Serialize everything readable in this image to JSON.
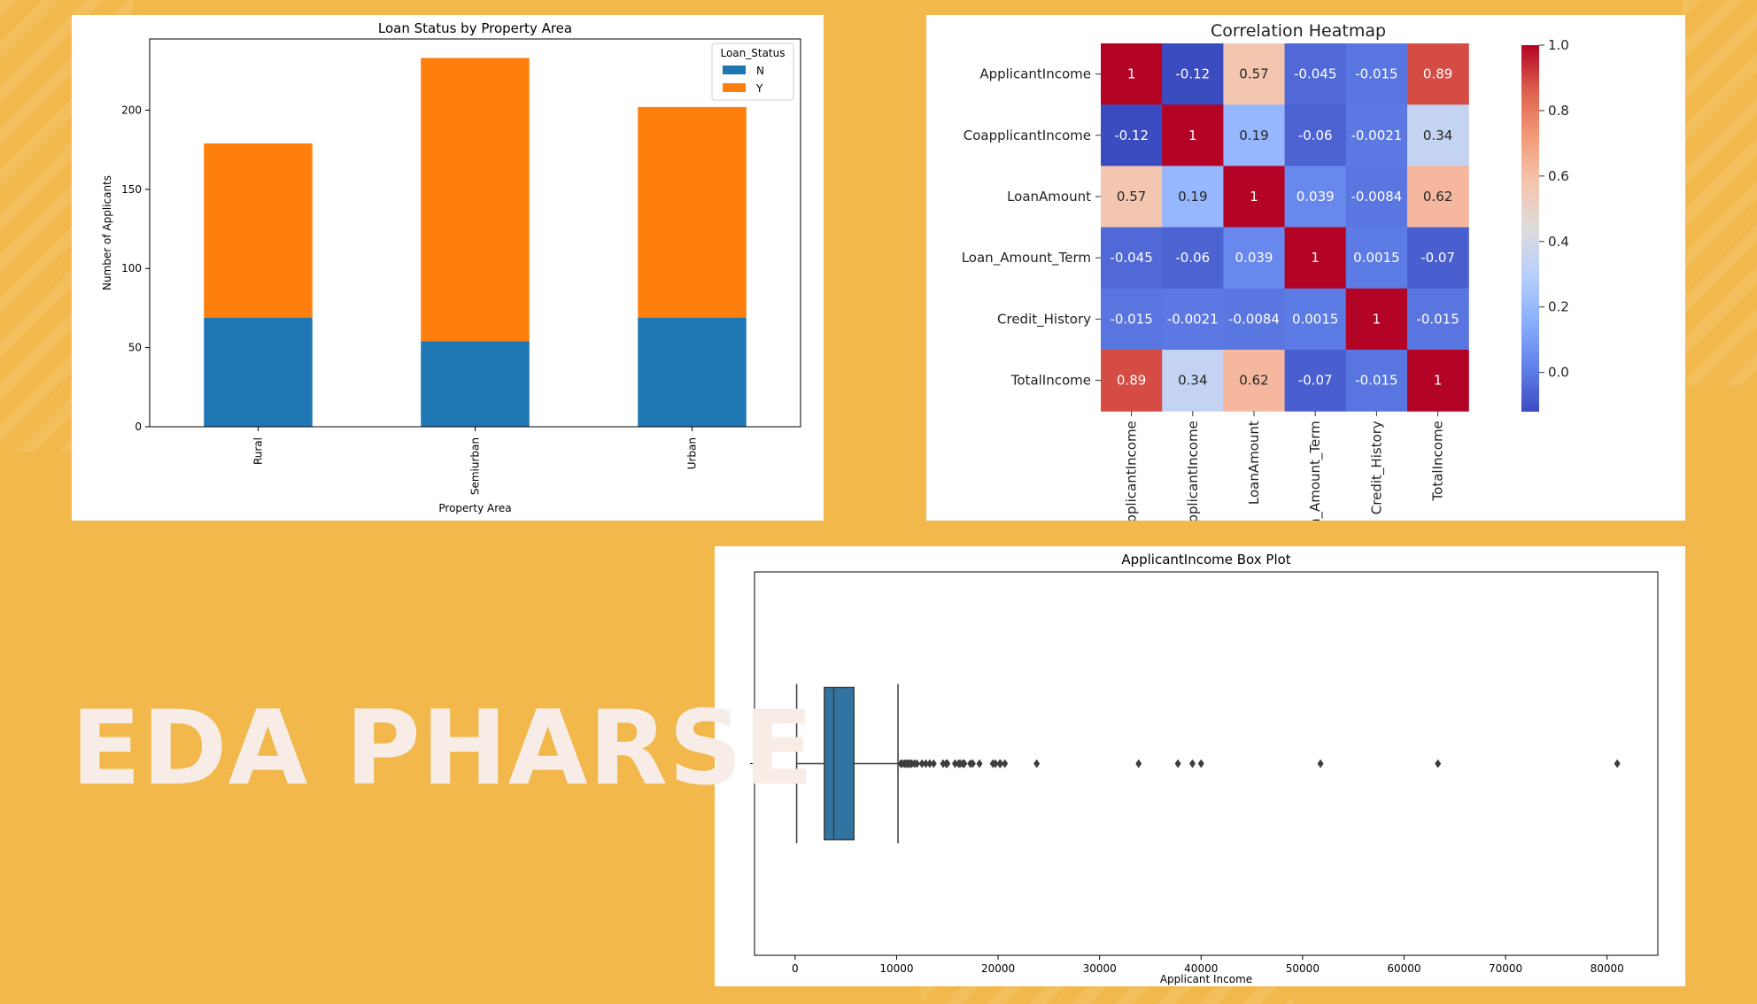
{
  "slide": {
    "headline": "EDA PHARSE",
    "colors": {
      "background": "#F2B84B",
      "headline": "#F7ECE6"
    }
  },
  "chart_data": [
    {
      "type": "bar",
      "stacked": true,
      "title": "Loan Status by Property Area",
      "xlabel": "Property Area",
      "ylabel": "Number of Applicants",
      "categories": [
        "Rural",
        "Semiurban",
        "Urban"
      ],
      "series": [
        {
          "name": "N",
          "values": [
            69,
            54,
            69
          ],
          "color": "#1F77B4"
        },
        {
          "name": "Y",
          "values": [
            110,
            179,
            133
          ],
          "color": "#FF7F0E"
        }
      ],
      "ylim": [
        0,
        245
      ],
      "yticks": [
        0,
        50,
        100,
        150,
        200
      ],
      "legend": {
        "title": "Loan_Status",
        "placement": "top-right"
      },
      "grid": false
    },
    {
      "type": "heatmap",
      "title": "Correlation Heatmap",
      "labels": [
        "ApplicantIncome",
        "CoapplicantIncome",
        "LoanAmount",
        "Loan_Amount_Term",
        "Credit_History",
        "TotalIncome"
      ],
      "xtick_labels": [
        "ApplicantIncome",
        "CoapplicantIncome",
        "LoanAmount",
        "Loan_Amount_Term",
        "Credit_History",
        "TotalIncome"
      ],
      "values": [
        [
          1,
          -0.12,
          0.57,
          -0.045,
          -0.015,
          0.89
        ],
        [
          -0.12,
          1,
          0.19,
          -0.06,
          -0.0021,
          0.34
        ],
        [
          0.57,
          0.19,
          1,
          0.039,
          -0.0084,
          0.62
        ],
        [
          -0.045,
          -0.06,
          0.039,
          1,
          0.0015,
          -0.07
        ],
        [
          -0.015,
          -0.0021,
          -0.0084,
          0.0015,
          1,
          -0.015
        ],
        [
          0.89,
          0.34,
          0.62,
          -0.07,
          -0.015,
          1
        ]
      ],
      "cell_labels": [
        [
          "1",
          "-0.12",
          "0.57",
          "-0.045",
          "-0.015",
          "0.89"
        ],
        [
          "-0.12",
          "1",
          "0.19",
          "-0.06",
          "-0.0021",
          "0.34"
        ],
        [
          "0.57",
          "0.19",
          "1",
          "0.039",
          "-0.0084",
          "0.62"
        ],
        [
          "-0.045",
          "-0.06",
          "0.039",
          "1",
          "0.0015",
          "-0.07"
        ],
        [
          "-0.015",
          "-0.0021",
          "-0.0084",
          "0.0015",
          "1",
          "-0.015"
        ],
        [
          "0.89",
          "0.34",
          "0.62",
          "-0.07",
          "-0.015",
          "1"
        ]
      ],
      "colormap": "coolwarm",
      "colorbar": {
        "range": [
          -0.12,
          1.0
        ],
        "ticks": [
          0.0,
          0.2,
          0.4,
          0.6,
          0.8,
          1.0
        ],
        "tick_labels": [
          "0.0",
          "0.2",
          "0.4",
          "0.6",
          "0.8",
          "1.0"
        ]
      }
    },
    {
      "type": "box",
      "title": "ApplicantIncome Box Plot",
      "xlabel": "Applicant Income",
      "orientation": "horizontal",
      "whisker_low": 150,
      "q1": 2878,
      "median": 3812,
      "q3": 5795,
      "whisker_high": 10139,
      "outliers": [
        10408,
        10513,
        10750,
        10833,
        11000,
        11146,
        11250,
        11417,
        11500,
        11757,
        12000,
        12500,
        12876,
        13262,
        13650,
        14583,
        14880,
        15000,
        15759,
        16120,
        16250,
        16525,
        16667,
        17263,
        17500,
        18165,
        19484,
        19730,
        20166,
        20233,
        20667,
        23803,
        33846,
        37719,
        39147,
        39999,
        51763,
        63337,
        81000
      ],
      "xlim": [
        -4000,
        85000
      ],
      "xticks": [
        0,
        10000,
        20000,
        30000,
        40000,
        50000,
        60000,
        70000,
        80000
      ],
      "color": "#3274A1"
    }
  ]
}
